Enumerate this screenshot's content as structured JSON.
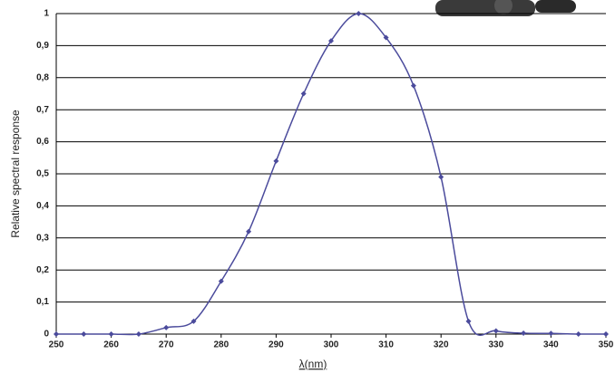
{
  "chart_data": {
    "type": "line",
    "x_label": "λ(nm)",
    "y_label": "Relative spectral response",
    "x": [
      250,
      255,
      260,
      265,
      270,
      275,
      280,
      285,
      290,
      295,
      300,
      305,
      310,
      315,
      320,
      325,
      330,
      335,
      340,
      345,
      350
    ],
    "series": [
      {
        "name": "Relative spectral response",
        "color": "#4b4b9c",
        "values": [
          0,
          0,
          0,
          0,
          0.02,
          0.04,
          0.165,
          0.32,
          0.54,
          0.75,
          0.915,
          1.0,
          0.925,
          0.775,
          0.49,
          0.04,
          0.01,
          0.003,
          0.002,
          0,
          0
        ]
      }
    ],
    "xlim": [
      250,
      350
    ],
    "xticks": [
      250,
      260,
      270,
      280,
      290,
      300,
      310,
      320,
      330,
      340,
      350
    ],
    "ylim": [
      0,
      1
    ],
    "yticks": [
      0,
      {
        "value": 0.1,
        "label": "0,1"
      },
      {
        "value": 0.2,
        "label": "0,2"
      },
      {
        "value": 0.3,
        "label": "0,3"
      },
      {
        "value": 0.4,
        "label": "0,4"
      },
      {
        "value": 0.5,
        "label": "0,5"
      },
      {
        "value": 0.6,
        "label": "0,6"
      },
      {
        "value": 0.7,
        "label": "0,7"
      },
      {
        "value": 0.8,
        "label": "0,8"
      },
      {
        "value": 0.9,
        "label": "0,9"
      },
      1
    ],
    "grid": true
  }
}
